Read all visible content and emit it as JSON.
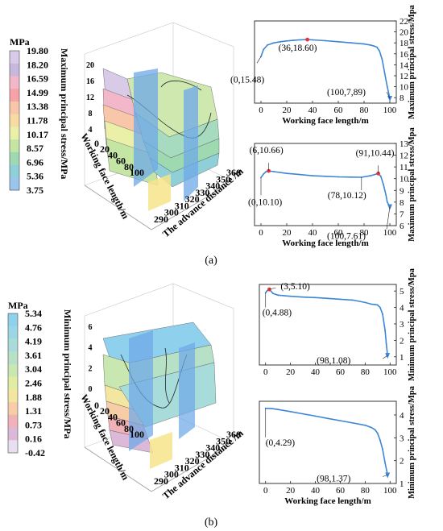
{
  "panels": {
    "a": {
      "caption": "(a)",
      "colorbar": {
        "unit": "MPa",
        "labels": [
          "19.80",
          "18.20",
          "16.59",
          "14.99",
          "13.38",
          "11.78",
          "10.17",
          "8.57",
          "6.96",
          "5.36",
          "3.75"
        ],
        "colors": [
          "#d9cbe8",
          "#c7b9dd",
          "#f2b7c8",
          "#f5a2a8",
          "#f8c6a8",
          "#f6dca3",
          "#eaf0a8",
          "#c5e5a5",
          "#9fd9b1",
          "#8fd0d8",
          "#9ac6ec"
        ]
      },
      "surface": {
        "z_label": "Maximum principal stress/MPa",
        "z_ticks": [
          "20",
          "16",
          "12",
          "8",
          "4"
        ],
        "y_label": "Working face length/m",
        "y_ticks": [
          "0",
          "20",
          "40",
          "60",
          "80",
          "100"
        ],
        "x_label": "The advance distance /m",
        "x_ticks": [
          "290",
          "300",
          "310",
          "320",
          "330",
          "340",
          "350",
          "360"
        ]
      }
    },
    "b": {
      "caption": "(b)",
      "colorbar": {
        "unit": "MPa",
        "labels": [
          "5.34",
          "4.76",
          "4.19",
          "3.61",
          "3.04",
          "2.46",
          "1.88",
          "1.31",
          "0.73",
          "0.16",
          "-0.42"
        ],
        "colors": [
          "#8fd0ec",
          "#9bd6e6",
          "#a8dcda",
          "#b6e1c6",
          "#c9e7b0",
          "#e2eca4",
          "#f3e6a0",
          "#f6cda6",
          "#f0b2b6",
          "#dcb9d8",
          "#e7dff0"
        ]
      },
      "surface": {
        "z_label": "Minimum principal stress/MPa",
        "z_ticks": [
          "6",
          "4",
          "2",
          "0"
        ],
        "y_label": "Working face length/m",
        "y_ticks": [
          "0",
          "20",
          "40",
          "60",
          "80",
          "100"
        ],
        "x_label": "The advance distance /m",
        "x_ticks": [
          "290",
          "300",
          "310",
          "320",
          "330",
          "340",
          "350",
          "360"
        ]
      }
    }
  },
  "chart_data": [
    {
      "type": "line",
      "panel": "a-top",
      "xlabel": "Working face length/m",
      "ylabel": "Maximum principal stress/Mpa",
      "xlim": [
        -5,
        105
      ],
      "ylim": [
        7,
        22
      ],
      "xticks": [
        0,
        20,
        40,
        60,
        80,
        100
      ],
      "yticks": [
        8,
        10,
        12,
        14,
        16,
        18,
        20,
        22
      ],
      "x": [
        0,
        2,
        5,
        10,
        15,
        20,
        25,
        30,
        36,
        40,
        50,
        60,
        70,
        80,
        85,
        88,
        90,
        92,
        94,
        96,
        98,
        100
      ],
      "y": [
        15.48,
        16.8,
        17.6,
        18.0,
        18.2,
        18.35,
        18.45,
        18.55,
        18.6,
        18.55,
        18.4,
        18.2,
        18.0,
        17.8,
        17.6,
        17.4,
        17.2,
        16.5,
        15.0,
        12.5,
        10.0,
        7.89
      ],
      "annotations": [
        {
          "label": "(0,15.48)",
          "x": 0,
          "y": 15.48,
          "marker": false
        },
        {
          "label": "(36,18.60)",
          "x": 36,
          "y": 18.6,
          "marker": true
        },
        {
          "label": "(100,7,89)",
          "x": 100,
          "y": 7.89,
          "marker": false
        }
      ]
    },
    {
      "type": "line",
      "panel": "a-bottom",
      "xlabel": "Working face length/m",
      "ylabel": "Maximum principal stress/Mpa",
      "xlim": [
        -5,
        105
      ],
      "ylim": [
        6,
        13
      ],
      "xticks": [
        0,
        20,
        40,
        60,
        80,
        100
      ],
      "yticks": [
        6,
        7,
        8,
        9,
        10,
        11,
        12,
        13
      ],
      "x": [
        0,
        2,
        4,
        6,
        10,
        20,
        30,
        40,
        50,
        60,
        70,
        78,
        85,
        91,
        93,
        95,
        97,
        98,
        100
      ],
      "y": [
        10.1,
        10.4,
        10.6,
        10.66,
        10.6,
        10.45,
        10.35,
        10.25,
        10.2,
        10.15,
        10.13,
        10.12,
        10.25,
        10.44,
        10.2,
        9.5,
        8.6,
        8.0,
        7.61
      ],
      "annotations": [
        {
          "label": "(0,10.10)",
          "x": 0,
          "y": 10.1,
          "marker": false
        },
        {
          "label": "(6,10.66)",
          "x": 6,
          "y": 10.66,
          "marker": true
        },
        {
          "label": "(78,10.12)",
          "x": 78,
          "y": 10.12,
          "marker": false
        },
        {
          "label": "(91,10.44)",
          "x": 91,
          "y": 10.44,
          "marker": true
        },
        {
          "label": "(100,7.61)",
          "x": 100,
          "y": 7.61,
          "marker": false
        }
      ]
    },
    {
      "type": "line",
      "panel": "b-top",
      "xlabel": "",
      "ylabel": "Minimum principal stress/Mpa",
      "xlim": [
        -5,
        105
      ],
      "ylim": [
        0.5,
        5.4
      ],
      "xticks": [
        0,
        20,
        40,
        60,
        80,
        100
      ],
      "yticks": [
        1,
        2,
        3,
        4,
        5
      ],
      "x": [
        0,
        1,
        3,
        6,
        10,
        20,
        30,
        40,
        50,
        60,
        70,
        80,
        85,
        88,
        90,
        92,
        94,
        96,
        97,
        98
      ],
      "y": [
        4.88,
        5.0,
        5.1,
        4.85,
        4.75,
        4.68,
        4.63,
        4.6,
        4.55,
        4.5,
        4.45,
        4.3,
        4.2,
        4.18,
        4.15,
        4.0,
        3.6,
        2.6,
        1.8,
        1.08
      ],
      "annotations": [
        {
          "label": "(0,4.88)",
          "x": 0,
          "y": 4.88,
          "marker": false
        },
        {
          "label": "(3,5.10)",
          "x": 3,
          "y": 5.1,
          "marker": true
        },
        {
          "label": "(98,1.08)",
          "x": 98,
          "y": 1.08,
          "marker": false
        }
      ]
    },
    {
      "type": "line",
      "panel": "b-bottom",
      "xlabel": "Working face length/m",
      "ylabel": "Minimum principal stress/Mpa",
      "xlim": [
        -5,
        105
      ],
      "ylim": [
        1,
        4.6
      ],
      "xticks": [
        0,
        20,
        40,
        60,
        80,
        100
      ],
      "yticks": [
        1,
        2,
        3,
        4
      ],
      "x": [
        0,
        5,
        10,
        20,
        30,
        40,
        50,
        60,
        70,
        80,
        85,
        88,
        90,
        92,
        94,
        96,
        98
      ],
      "y": [
        4.29,
        4.28,
        4.24,
        4.15,
        4.05,
        3.95,
        3.85,
        3.75,
        3.65,
        3.55,
        3.45,
        3.35,
        3.2,
        2.9,
        2.5,
        1.9,
        1.37
      ],
      "annotations": [
        {
          "label": "(0,4.29)",
          "x": 0,
          "y": 4.29,
          "marker": false
        },
        {
          "label": "(98,1.37)",
          "x": 98,
          "y": 1.37,
          "marker": false
        }
      ]
    }
  ]
}
